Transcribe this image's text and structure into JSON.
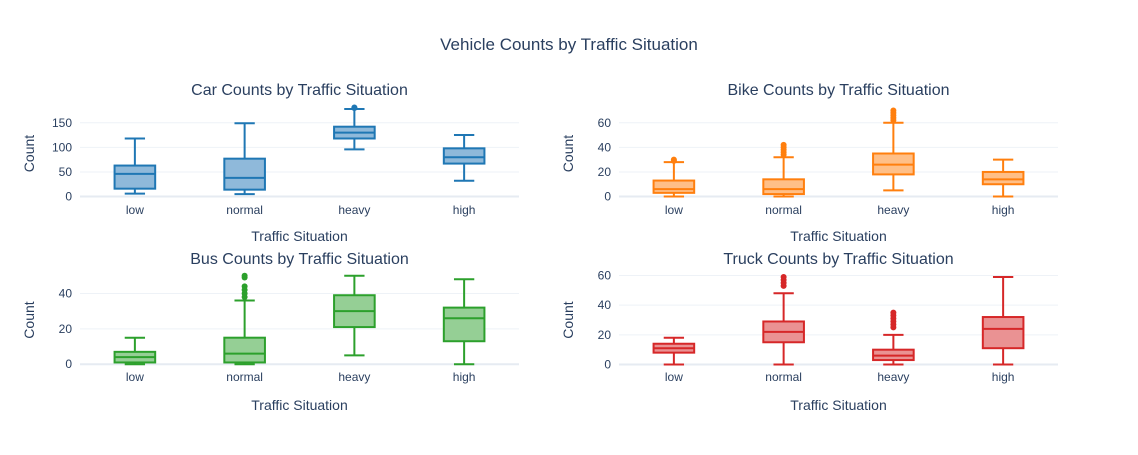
{
  "title": "Vehicle Counts by Traffic Situation",
  "chart_data": [
    {
      "type": "box",
      "title": "Car Counts by Traffic Situation",
      "xlabel": "Traffic Situation",
      "ylabel": "Count",
      "color": "#1f77b4",
      "fill": "#8fb9da",
      "categories": [
        "low",
        "normal",
        "heavy",
        "high"
      ],
      "ylim": [
        -5,
        180
      ],
      "yticks": [
        0,
        50,
        100,
        150
      ],
      "boxes": [
        {
          "min": 6,
          "q1": 16,
          "median": 46,
          "q3": 63,
          "max": 118,
          "outliers": []
        },
        {
          "min": 5,
          "q1": 14,
          "median": 38,
          "q3": 77,
          "max": 149,
          "outliers": []
        },
        {
          "min": 96,
          "q1": 118,
          "median": 130,
          "q3": 142,
          "max": 178,
          "outliers": [
            180,
            181
          ]
        },
        {
          "min": 32,
          "q1": 67,
          "median": 80,
          "q3": 98,
          "max": 125,
          "outliers": []
        }
      ]
    },
    {
      "type": "box",
      "title": "Bike Counts by Traffic Situation",
      "xlabel": "Traffic Situation",
      "ylabel": "Count",
      "color": "#ff7f0e",
      "fill": "#ffbf87",
      "categories": [
        "low",
        "normal",
        "heavy",
        "high"
      ],
      "ylim": [
        -2,
        72
      ],
      "yticks": [
        0,
        20,
        40,
        60
      ],
      "boxes": [
        {
          "min": 0,
          "q1": 3,
          "median": 6,
          "q3": 13,
          "max": 28,
          "outliers": [
            29,
            30
          ]
        },
        {
          "min": 0,
          "q1": 2,
          "median": 6,
          "q3": 14,
          "max": 32,
          "outliers": [
            34,
            36,
            38,
            40,
            42
          ]
        },
        {
          "min": 5,
          "q1": 18,
          "median": 26,
          "q3": 35,
          "max": 60,
          "outliers": [
            62,
            64,
            66,
            68,
            70
          ]
        },
        {
          "min": 0,
          "q1": 10,
          "median": 14,
          "q3": 20,
          "max": 30,
          "outliers": []
        }
      ]
    },
    {
      "type": "box",
      "title": "Bus Counts by Traffic Situation",
      "xlabel": "Traffic Situation",
      "ylabel": "Count",
      "color": "#2ca02c",
      "fill": "#95cf95",
      "categories": [
        "low",
        "normal",
        "heavy",
        "high"
      ],
      "ylim": [
        -1,
        51
      ],
      "yticks": [
        0,
        20,
        40
      ],
      "boxes": [
        {
          "min": 0,
          "q1": 1,
          "median": 4,
          "q3": 7,
          "max": 15,
          "outliers": []
        },
        {
          "min": 0,
          "q1": 1,
          "median": 6,
          "q3": 15,
          "max": 36,
          "outliers": [
            38,
            40,
            42,
            44,
            49,
            50
          ]
        },
        {
          "min": 5,
          "q1": 21,
          "median": 30,
          "q3": 39,
          "max": 50,
          "outliers": []
        },
        {
          "min": 0,
          "q1": 13,
          "median": 26,
          "q3": 32,
          "max": 48,
          "outliers": []
        }
      ]
    },
    {
      "type": "box",
      "title": "Truck Counts by Traffic Situation",
      "xlabel": "Traffic Situation",
      "ylabel": "Count",
      "color": "#d62728",
      "fill": "#ea9293",
      "categories": [
        "low",
        "normal",
        "heavy",
        "high"
      ],
      "ylim": [
        -1,
        61
      ],
      "yticks": [
        0,
        20,
        40,
        60
      ],
      "boxes": [
        {
          "min": 0,
          "q1": 8,
          "median": 11,
          "q3": 14,
          "max": 18,
          "outliers": []
        },
        {
          "min": 0,
          "q1": 15,
          "median": 22,
          "q3": 29,
          "max": 48,
          "outliers": [
            53,
            55,
            57,
            59
          ]
        },
        {
          "min": 0,
          "q1": 3,
          "median": 6,
          "q3": 10,
          "max": 20,
          "outliers": [
            25,
            27,
            29,
            31,
            33,
            35
          ]
        },
        {
          "min": 0,
          "q1": 11,
          "median": 24,
          "q3": 32,
          "max": 59,
          "outliers": []
        }
      ]
    }
  ]
}
